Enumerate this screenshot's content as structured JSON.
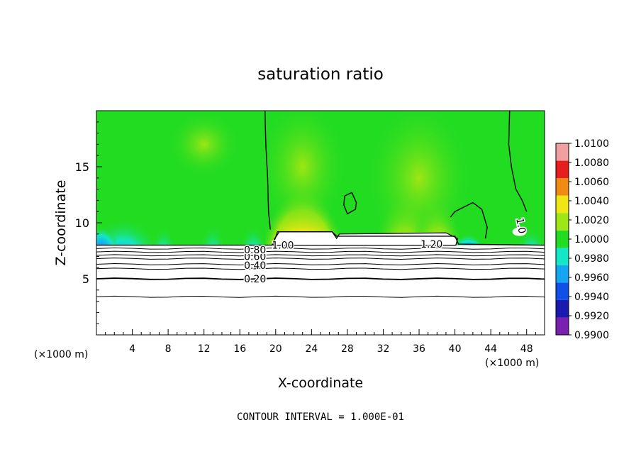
{
  "chart_data": {
    "type": "heatmap",
    "title": "saturation ratio",
    "xlabel": "X-coordinate",
    "ylabel": "Z-coordinate",
    "x_units": "(×1000 m)",
    "xlim": [
      0,
      50
    ],
    "ylim": [
      0,
      20
    ],
    "x_ticks": [
      4,
      8,
      12,
      16,
      20,
      24,
      28,
      32,
      36,
      40,
      44,
      48
    ],
    "y_ticks": [
      5,
      10,
      15
    ],
    "footer": "CONTOUR INTERVAL = 1.000E-01",
    "colorbar": {
      "levels": [
        "0.9900",
        "0.9920",
        "0.9940",
        "0.9960",
        "0.9980",
        "1.0000",
        "1.0020",
        "1.0040",
        "1.0060",
        "1.0080",
        "1.0100"
      ],
      "colors": [
        "#7a1fb0",
        "#1a1ab0",
        "#1050e8",
        "#14a6f0",
        "#14e6c8",
        "#22dc22",
        "#9ee614",
        "#f0e614",
        "#f08c14",
        "#e61e1e",
        "#f0a0a0"
      ]
    },
    "contour_labels": [
      {
        "text": "0.20",
        "x": 17.7,
        "z": 5.0
      },
      {
        "text": "0.40",
        "x": 17.7,
        "z": 6.2
      },
      {
        "text": "0.60",
        "x": 17.7,
        "z": 7.0
      },
      {
        "text": "0.80",
        "x": 17.7,
        "z": 7.6
      },
      {
        "text": "1.00",
        "x": 20.8,
        "z": 8.0
      },
      {
        "text": "1.20",
        "x": 37.4,
        "z": 8.1
      },
      {
        "text": "1.0",
        "x": 47.0,
        "z": 10.0
      }
    ]
  }
}
